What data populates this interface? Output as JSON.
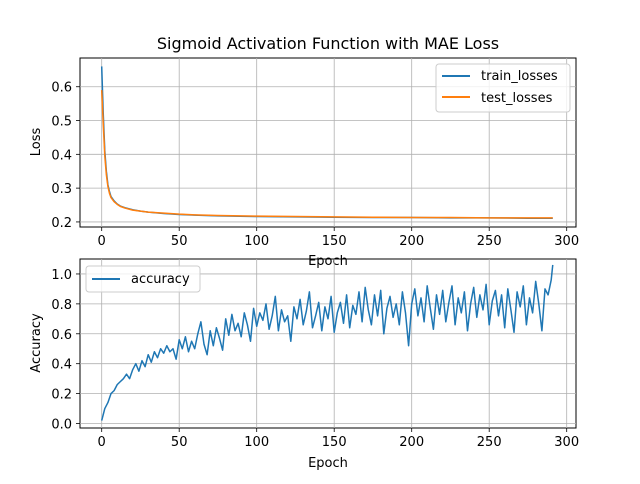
{
  "chart_data": [
    {
      "type": "line",
      "title": "Sigmoid Activation Function with MAE Loss",
      "xlabel": "Epoch",
      "ylabel": "Loss",
      "xlim": [
        -14,
        306
      ],
      "ylim": [
        0.185,
        0.685
      ],
      "xticks": [
        0,
        50,
        100,
        150,
        200,
        250,
        300
      ],
      "yticks": [
        0.2,
        0.3,
        0.4,
        0.5,
        0.6
      ],
      "ytick_labels": [
        "0.2",
        "0.3",
        "0.4",
        "0.5",
        "0.6"
      ],
      "grid": true,
      "legend": "top-right",
      "series": [
        {
          "name": "train_losses",
          "color": "#1f77b4",
          "points": [
            [
              0,
              0.66
            ],
            [
              1,
              0.52
            ],
            [
              2,
              0.41
            ],
            [
              3,
              0.35
            ],
            [
              4,
              0.31
            ],
            [
              5,
              0.29
            ],
            [
              6,
              0.275
            ],
            [
              8,
              0.262
            ],
            [
              10,
              0.253
            ],
            [
              12,
              0.247
            ],
            [
              15,
              0.242
            ],
            [
              20,
              0.236
            ],
            [
              25,
              0.232
            ],
            [
              30,
              0.229
            ],
            [
              40,
              0.225
            ],
            [
              50,
              0.222
            ],
            [
              60,
              0.22
            ],
            [
              75,
              0.218
            ],
            [
              100,
              0.216
            ],
            [
              125,
              0.215
            ],
            [
              150,
              0.214
            ],
            [
              175,
              0.213
            ],
            [
              200,
              0.213
            ],
            [
              225,
              0.212
            ],
            [
              250,
              0.212
            ],
            [
              275,
              0.211
            ],
            [
              291,
              0.211
            ]
          ]
        },
        {
          "name": "test_losses",
          "color": "#ff7f0e",
          "points": [
            [
              0,
              0.59
            ],
            [
              1,
              0.49
            ],
            [
              2,
              0.395
            ],
            [
              3,
              0.34
            ],
            [
              4,
              0.305
            ],
            [
              5,
              0.285
            ],
            [
              6,
              0.272
            ],
            [
              8,
              0.26
            ],
            [
              10,
              0.252
            ],
            [
              12,
              0.246
            ],
            [
              15,
              0.241
            ],
            [
              20,
              0.235
            ],
            [
              25,
              0.232
            ],
            [
              30,
              0.229
            ],
            [
              40,
              0.226
            ],
            [
              50,
              0.223
            ],
            [
              60,
              0.221
            ],
            [
              75,
              0.219
            ],
            [
              100,
              0.217
            ],
            [
              125,
              0.216
            ],
            [
              150,
              0.215
            ],
            [
              175,
              0.214
            ],
            [
              200,
              0.213
            ],
            [
              225,
              0.213
            ],
            [
              250,
              0.212
            ],
            [
              275,
              0.212
            ],
            [
              291,
              0.212
            ]
          ]
        }
      ]
    },
    {
      "type": "line",
      "title": "",
      "xlabel": "Epoch",
      "ylabel": "Accuracy",
      "xlim": [
        -14,
        306
      ],
      "ylim": [
        -0.03,
        1.1
      ],
      "xticks": [
        0,
        50,
        100,
        150,
        200,
        250,
        300
      ],
      "yticks": [
        0.0,
        0.2,
        0.4,
        0.6,
        0.8,
        1.0
      ],
      "ytick_labels": [
        "0.0",
        "0.2",
        "0.4",
        "0.6",
        "0.8",
        "1.0"
      ],
      "grid": true,
      "legend": "top-left",
      "series": [
        {
          "name": "accuracy",
          "color": "#1f77b4",
          "points": [
            [
              0,
              0.02
            ],
            [
              2,
              0.1
            ],
            [
              4,
              0.14
            ],
            [
              6,
              0.2
            ],
            [
              8,
              0.22
            ],
            [
              10,
              0.26
            ],
            [
              12,
              0.28
            ],
            [
              14,
              0.3
            ],
            [
              16,
              0.33
            ],
            [
              18,
              0.3
            ],
            [
              20,
              0.36
            ],
            [
              22,
              0.4
            ],
            [
              24,
              0.35
            ],
            [
              26,
              0.42
            ],
            [
              28,
              0.38
            ],
            [
              30,
              0.46
            ],
            [
              32,
              0.41
            ],
            [
              34,
              0.48
            ],
            [
              36,
              0.44
            ],
            [
              38,
              0.5
            ],
            [
              40,
              0.47
            ],
            [
              42,
              0.52
            ],
            [
              44,
              0.48
            ],
            [
              46,
              0.5
            ],
            [
              48,
              0.43
            ],
            [
              50,
              0.56
            ],
            [
              52,
              0.5
            ],
            [
              54,
              0.58
            ],
            [
              56,
              0.48
            ],
            [
              58,
              0.55
            ],
            [
              60,
              0.5
            ],
            [
              62,
              0.6
            ],
            [
              64,
              0.68
            ],
            [
              66,
              0.53
            ],
            [
              68,
              0.46
            ],
            [
              70,
              0.62
            ],
            [
              72,
              0.52
            ],
            [
              74,
              0.64
            ],
            [
              76,
              0.57
            ],
            [
              78,
              0.49
            ],
            [
              80,
              0.7
            ],
            [
              82,
              0.59
            ],
            [
              84,
              0.73
            ],
            [
              86,
              0.62
            ],
            [
              88,
              0.67
            ],
            [
              90,
              0.58
            ],
            [
              92,
              0.74
            ],
            [
              94,
              0.66
            ],
            [
              96,
              0.55
            ],
            [
              98,
              0.77
            ],
            [
              100,
              0.65
            ],
            [
              102,
              0.74
            ],
            [
              104,
              0.69
            ],
            [
              106,
              0.8
            ],
            [
              108,
              0.63
            ],
            [
              110,
              0.72
            ],
            [
              112,
              0.85
            ],
            [
              114,
              0.62
            ],
            [
              116,
              0.76
            ],
            [
              118,
              0.68
            ],
            [
              120,
              0.72
            ],
            [
              122,
              0.55
            ],
            [
              124,
              0.78
            ],
            [
              126,
              0.7
            ],
            [
              128,
              0.83
            ],
            [
              130,
              0.66
            ],
            [
              132,
              0.75
            ],
            [
              134,
              0.88
            ],
            [
              136,
              0.64
            ],
            [
              138,
              0.72
            ],
            [
              140,
              0.81
            ],
            [
              142,
              0.62
            ],
            [
              144,
              0.78
            ],
            [
              146,
              0.7
            ],
            [
              148,
              0.85
            ],
            [
              150,
              0.61
            ],
            [
              152,
              0.74
            ],
            [
              154,
              0.81
            ],
            [
              156,
              0.67
            ],
            [
              158,
              0.86
            ],
            [
              160,
              0.64
            ],
            [
              162,
              0.79
            ],
            [
              164,
              0.73
            ],
            [
              166,
              0.88
            ],
            [
              168,
              0.68
            ],
            [
              170,
              0.91
            ],
            [
              172,
              0.76
            ],
            [
              174,
              0.66
            ],
            [
              176,
              0.86
            ],
            [
              178,
              0.72
            ],
            [
              180,
              0.89
            ],
            [
              182,
              0.6
            ],
            [
              184,
              0.77
            ],
            [
              186,
              0.85
            ],
            [
              188,
              0.71
            ],
            [
              190,
              0.8
            ],
            [
              192,
              0.66
            ],
            [
              194,
              0.88
            ],
            [
              196,
              0.74
            ],
            [
              198,
              0.52
            ],
            [
              200,
              0.8
            ],
            [
              202,
              0.9
            ],
            [
              204,
              0.72
            ],
            [
              206,
              0.84
            ],
            [
              208,
              0.68
            ],
            [
              210,
              0.92
            ],
            [
              212,
              0.77
            ],
            [
              214,
              0.63
            ],
            [
              216,
              0.86
            ],
            [
              218,
              0.73
            ],
            [
              220,
              0.89
            ],
            [
              222,
              0.68
            ],
            [
              224,
              0.81
            ],
            [
              226,
              0.92
            ],
            [
              228,
              0.66
            ],
            [
              230,
              0.84
            ],
            [
              232,
              0.74
            ],
            [
              234,
              0.88
            ],
            [
              236,
              0.62
            ],
            [
              238,
              0.8
            ],
            [
              240,
              0.91
            ],
            [
              242,
              0.71
            ],
            [
              244,
              0.86
            ],
            [
              246,
              0.76
            ],
            [
              248,
              0.93
            ],
            [
              250,
              0.66
            ],
            [
              252,
              0.82
            ],
            [
              254,
              0.89
            ],
            [
              256,
              0.72
            ],
            [
              258,
              0.86
            ],
            [
              260,
              0.64
            ],
            [
              262,
              0.9
            ],
            [
              264,
              0.76
            ],
            [
              266,
              0.61
            ],
            [
              268,
              0.88
            ],
            [
              270,
              0.78
            ],
            [
              272,
              0.92
            ],
            [
              274,
              0.66
            ],
            [
              276,
              0.84
            ],
            [
              278,
              0.74
            ],
            [
              280,
              0.95
            ],
            [
              282,
              0.8
            ],
            [
              284,
              0.62
            ],
            [
              286,
              0.9
            ],
            [
              288,
              0.86
            ],
            [
              290,
              0.96
            ],
            [
              291,
              1.06
            ]
          ]
        }
      ]
    }
  ]
}
